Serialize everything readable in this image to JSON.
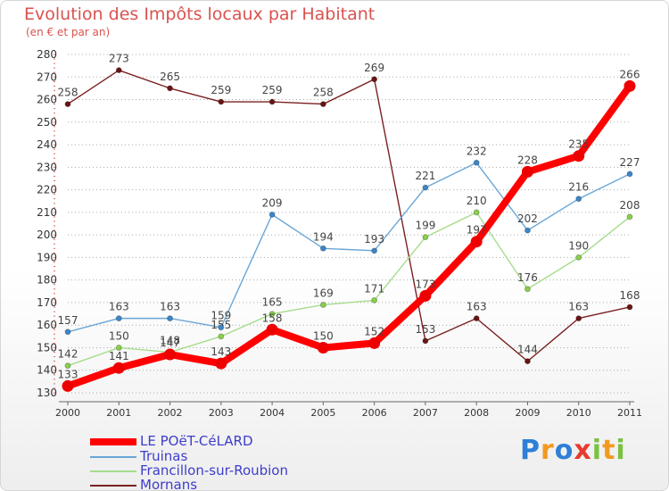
{
  "colors": {
    "title": "#d9534f",
    "axis": "#333333",
    "grid": "#aaaaaa",
    "legend_text": "#3d3dcc"
  },
  "chart_data": {
    "type": "line",
    "title": "Evolution des Impôts locaux par Habitant",
    "subtitle": "(en € et par an)",
    "xlabel": "",
    "ylabel": "",
    "ylim": [
      130,
      280
    ],
    "yticks": [
      130,
      140,
      150,
      160,
      170,
      180,
      190,
      200,
      210,
      220,
      230,
      240,
      250,
      260,
      270,
      280
    ],
    "categories": [
      "2000",
      "2001",
      "2002",
      "2003",
      "2004",
      "2005",
      "2006",
      "2007",
      "2008",
      "2009",
      "2010",
      "2011"
    ],
    "series": [
      {
        "name": "Mornans",
        "color": "#7a2020",
        "dot": "#6a1414",
        "values": [
          258,
          273,
          265,
          259,
          259,
          258,
          269,
          153,
          163,
          144,
          163,
          168
        ]
      },
      {
        "name": "Francillon-sur-Roubion",
        "color": "#a6dc8c",
        "dot": "#88d048",
        "values": [
          142,
          150,
          148,
          155,
          165,
          169,
          171,
          199,
          210,
          176,
          190,
          208
        ]
      },
      {
        "name": "Truinas",
        "color": "#6aa6d6",
        "dot": "#3b86c8",
        "values": [
          157,
          163,
          163,
          159,
          209,
          194,
          193,
          221,
          232,
          202,
          216,
          227
        ]
      },
      {
        "name": "LE POëT-CéLARD",
        "color": "#ff0000",
        "dot": "#ee0000",
        "values": [
          133,
          141,
          147,
          143,
          158,
          150,
          152,
          173,
          197,
          228,
          235,
          266
        ]
      }
    ]
  },
  "legend": {
    "items": [
      {
        "label": "LE POëT-CéLARD",
        "color": "#ff0000"
      },
      {
        "label": "Truinas",
        "color": "#6aa6d6"
      },
      {
        "label": "Francillon-sur-Roubion",
        "color": "#a6dc8c"
      },
      {
        "label": "Mornans",
        "color": "#7a2020"
      }
    ]
  },
  "brand": {
    "letters": [
      {
        "ch": "P",
        "color": "#2e7fd6"
      },
      {
        "ch": "r",
        "color": "#f29a1f"
      },
      {
        "ch": "o",
        "color": "#2e7fd6"
      },
      {
        "ch": "x",
        "color": "#e83a2e"
      },
      {
        "ch": "i",
        "color": "#7cc142"
      },
      {
        "ch": "t",
        "color": "#f29a1f"
      },
      {
        "ch": "i",
        "color": "#7cc142"
      }
    ]
  }
}
